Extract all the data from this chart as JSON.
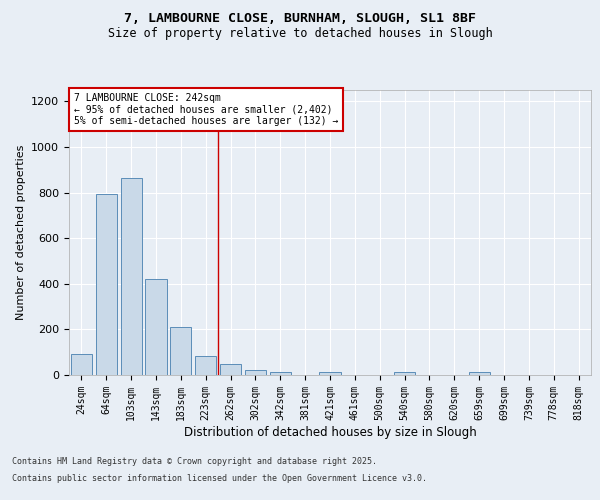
{
  "title_line1": "7, LAMBOURNE CLOSE, BURNHAM, SLOUGH, SL1 8BF",
  "title_line2": "Size of property relative to detached houses in Slough",
  "xlabel": "Distribution of detached houses by size in Slough",
  "ylabel": "Number of detached properties",
  "categories": [
    "24sqm",
    "64sqm",
    "103sqm",
    "143sqm",
    "183sqm",
    "223sqm",
    "262sqm",
    "302sqm",
    "342sqm",
    "381sqm",
    "421sqm",
    "461sqm",
    "500sqm",
    "540sqm",
    "580sqm",
    "620sqm",
    "659sqm",
    "699sqm",
    "739sqm",
    "778sqm",
    "818sqm"
  ],
  "values": [
    90,
    793,
    862,
    422,
    210,
    85,
    50,
    20,
    12,
    0,
    12,
    0,
    0,
    15,
    0,
    0,
    12,
    0,
    0,
    0,
    0
  ],
  "bar_color": "#c9d9e8",
  "bar_edge_color": "#5b8db8",
  "vline_x": 5.5,
  "vline_color": "#cc0000",
  "annotation_title": "7 LAMBOURNE CLOSE: 242sqm",
  "annotation_line1": "← 95% of detached houses are smaller (2,402)",
  "annotation_line2": "5% of semi-detached houses are larger (132) →",
  "ylim": [
    0,
    1250
  ],
  "yticks": [
    0,
    200,
    400,
    600,
    800,
    1000,
    1200
  ],
  "footer_line1": "Contains HM Land Registry data © Crown copyright and database right 2025.",
  "footer_line2": "Contains public sector information licensed under the Open Government Licence v3.0.",
  "bg_color": "#e8eef5",
  "plot_bg_color": "#e8eef5"
}
